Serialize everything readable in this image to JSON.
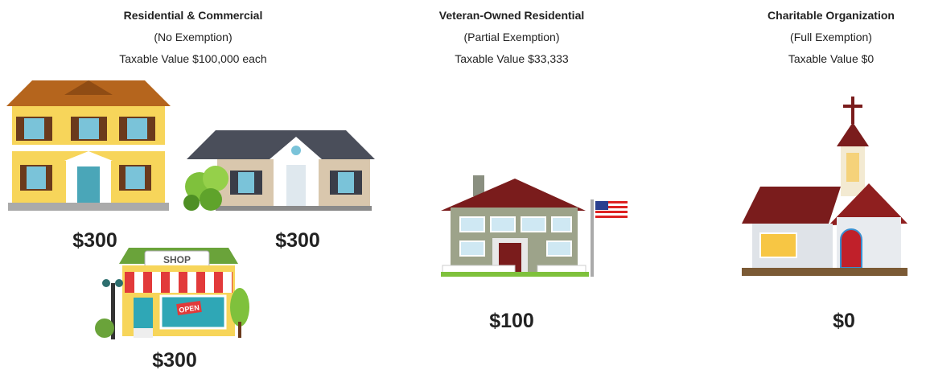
{
  "columns": [
    {
      "title": "Residential & Commercial",
      "subtitle": "(No Exemption)",
      "taxable": "Taxable Value $100,000 each",
      "properties": [
        {
          "amount": "$300"
        },
        {
          "amount": "$300"
        },
        {
          "amount": "$300"
        }
      ],
      "signs": {
        "shop": "SHOP",
        "open": "OPEN"
      }
    },
    {
      "title": "Veteran-Owned Residential",
      "subtitle": "(Partial Exemption)",
      "taxable": "Taxable Value $33,333",
      "properties": [
        {
          "amount": "$100"
        }
      ]
    },
    {
      "title": "Charitable Organization",
      "subtitle": "(Full Exemption)",
      "taxable": "Taxable Value $0",
      "properties": [
        {
          "amount": "$0"
        }
      ]
    }
  ]
}
